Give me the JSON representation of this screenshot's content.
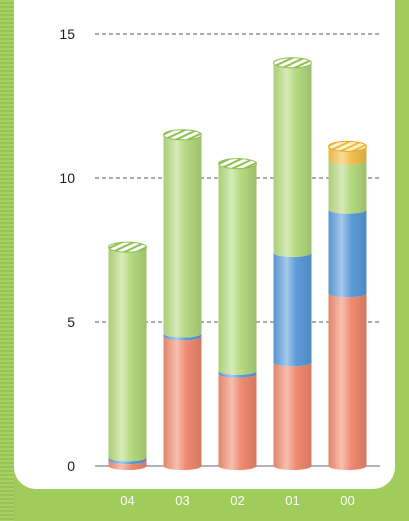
{
  "chart_data": {
    "type": "bar",
    "stacked": true,
    "categories": [
      "04",
      "03",
      "02",
      "01",
      "00"
    ],
    "series": [
      {
        "values": [
          0.2,
          4.5,
          3.2,
          3.6,
          6.0
        ]
      },
      {
        "values": [
          0.1,
          0.1,
          0.1,
          3.8,
          2.9
        ]
      },
      {
        "values": [
          7.3,
          6.9,
          7.2,
          6.6,
          1.7
        ]
      },
      {
        "values": [
          0.0,
          0.0,
          0.0,
          0.0,
          0.5
        ]
      }
    ],
    "colors": [
      "#f08a70",
      "#5b9bd8",
      "#b4d97e",
      "#f2c04c"
    ],
    "ylim": [
      0,
      15
    ],
    "yticks": [
      0,
      5,
      10,
      15
    ],
    "grid": true,
    "title": "",
    "xlabel": "",
    "ylabel": ""
  }
}
